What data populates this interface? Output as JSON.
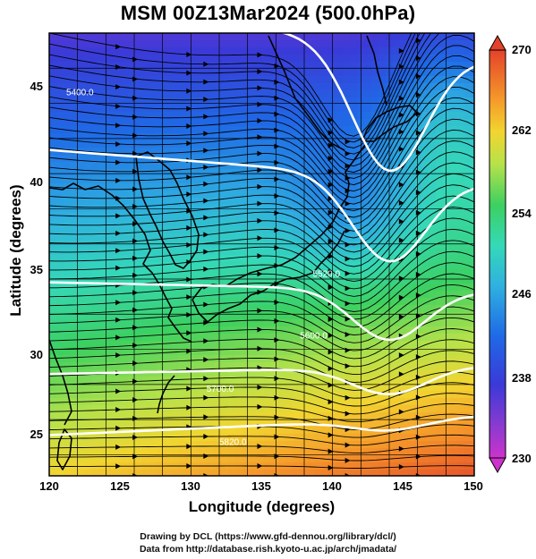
{
  "title": "MSM 00Z13Mar2024 (500.0hPa)",
  "xaxis": {
    "label": "Longitude (degrees)",
    "ticks": [
      "120",
      "125",
      "130",
      "135",
      "140",
      "145",
      "150"
    ],
    "range": [
      120,
      150
    ]
  },
  "yaxis": {
    "label": "Latitude  (degrees)",
    "ticks": [
      "25",
      "30",
      "35",
      "40",
      "45"
    ],
    "range": [
      22.4,
      47.6
    ]
  },
  "colorbar": {
    "ticks": [
      "270",
      "262",
      "254",
      "246",
      "238",
      "230"
    ],
    "min": 230,
    "max": 270,
    "units_hint": "temperature (K)"
  },
  "contours": [
    {
      "label": "5400.0"
    },
    {
      "label": "5520.0"
    },
    {
      "label": "5600.0"
    },
    {
      "label": "5700.0"
    },
    {
      "label": "5820.0"
    }
  ],
  "credits": {
    "line1": "Drawing by DCL (https://www.gfd-dennou.org/library/dcl/)",
    "line2": "Data from http://database.rish.kyoto-u.ac.jp/arch/jmadata/"
  },
  "chart_data": {
    "type": "heatmap",
    "title": "MSM 00Z13Mar2024 (500.0hPa)",
    "xlabel": "Longitude (degrees)",
    "ylabel": "Latitude  (degrees)",
    "xlim": [
      120,
      150
    ],
    "ylim": [
      22.4,
      47.6
    ],
    "colorbar_range": [
      230,
      270
    ],
    "contour_labels": [
      "5400.0",
      "5520.0",
      "5600.0",
      "5700.0",
      "5820.0"
    ],
    "overlays": [
      "coastlines",
      "lat-lon grid",
      "wind streamlines",
      "geopotential height contours"
    ]
  }
}
